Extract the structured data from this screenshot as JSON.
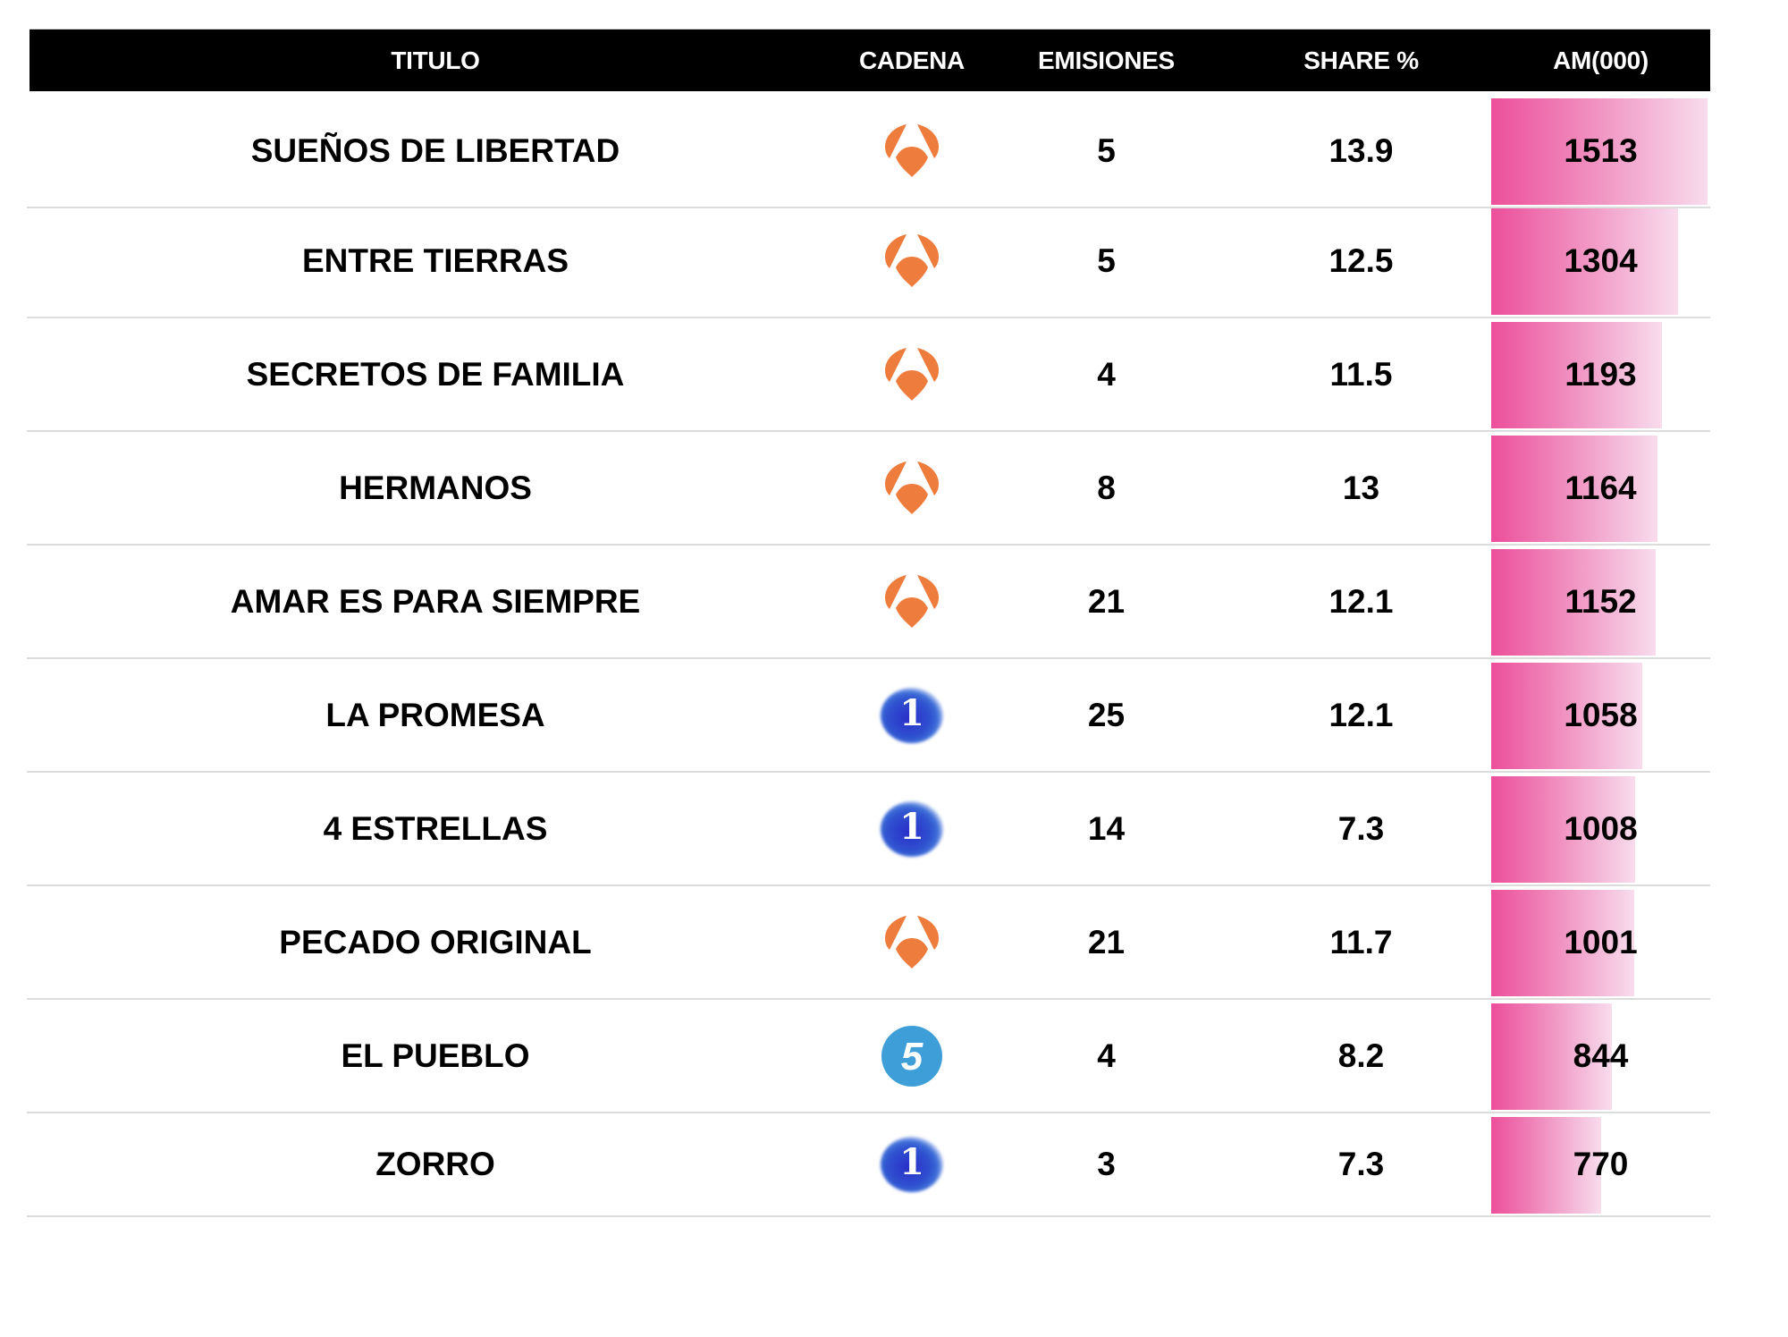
{
  "header": {
    "titulo": "TITULO",
    "cadena": "CADENA",
    "emisiones": "EMISIONES",
    "share": "SHARE %",
    "am": "AM(000)"
  },
  "colors": {
    "header_bg": "#000000",
    "header_text": "#ffffff",
    "bar_gradient_start": "#ec4f9b",
    "bar_gradient_end": "#f8dcec",
    "antena3": "#ee7d3d",
    "la1": "#2f3fc8",
    "telecinco": "#3d9ed8",
    "divider": "#dcdcdc"
  },
  "rows": [
    {
      "titulo": "SUEÑOS DE LIBERTAD",
      "cadena": "antena3",
      "cadena_icon": "antena3-logo-icon",
      "emisiones": "5",
      "share": "13.9",
      "am": "1513"
    },
    {
      "titulo": "ENTRE TIERRAS",
      "cadena": "antena3",
      "cadena_icon": "antena3-logo-icon",
      "emisiones": "5",
      "share": "12.5",
      "am": "1304"
    },
    {
      "titulo": "SECRETOS DE FAMILIA",
      "cadena": "antena3",
      "cadena_icon": "antena3-logo-icon",
      "emisiones": "4",
      "share": "11.5",
      "am": "1193"
    },
    {
      "titulo": "HERMANOS",
      "cadena": "antena3",
      "cadena_icon": "antena3-logo-icon",
      "emisiones": "8",
      "share": "13",
      "am": "1164"
    },
    {
      "titulo": "AMAR ES PARA SIEMPRE",
      "cadena": "antena3",
      "cadena_icon": "antena3-logo-icon",
      "emisiones": "21",
      "share": "12.1",
      "am": "1152"
    },
    {
      "titulo": "LA PROMESA",
      "cadena": "la1",
      "cadena_icon": "la1-logo-icon",
      "cadena_glyph": "1",
      "emisiones": "25",
      "share": "12.1",
      "am": "1058"
    },
    {
      "titulo": "4 ESTRELLAS",
      "cadena": "la1",
      "cadena_icon": "la1-logo-icon",
      "cadena_glyph": "1",
      "emisiones": "14",
      "share": "7.3",
      "am": "1008"
    },
    {
      "titulo": "PECADO ORIGINAL",
      "cadena": "antena3",
      "cadena_icon": "antena3-logo-icon",
      "emisiones": "21",
      "share": "11.7",
      "am": "1001"
    },
    {
      "titulo": "EL PUEBLO",
      "cadena": "telecinco",
      "cadena_icon": "telecinco-logo-icon",
      "cadena_glyph": "5",
      "emisiones": "4",
      "share": "8.2",
      "am": "844"
    },
    {
      "titulo": "ZORRO",
      "cadena": "la1",
      "cadena_icon": "la1-logo-icon",
      "cadena_glyph": "1",
      "emisiones": "3",
      "share": "7.3",
      "am": "770"
    }
  ],
  "chart_data": {
    "type": "table",
    "title": "",
    "columns": [
      "TITULO",
      "CADENA",
      "EMISIONES",
      "SHARE %",
      "AM(000)"
    ],
    "rows": [
      [
        "SUEÑOS DE LIBERTAD",
        "Antena 3",
        5,
        13.9,
        1513
      ],
      [
        "ENTRE TIERRAS",
        "Antena 3",
        5,
        12.5,
        1304
      ],
      [
        "SECRETOS DE FAMILIA",
        "Antena 3",
        4,
        11.5,
        1193
      ],
      [
        "HERMANOS",
        "Antena 3",
        8,
        13,
        1164
      ],
      [
        "AMAR ES PARA SIEMPRE",
        "Antena 3",
        21,
        12.1,
        1152
      ],
      [
        "LA PROMESA",
        "La 1",
        25,
        12.1,
        1058
      ],
      [
        "4 ESTRELLAS",
        "La 1",
        14,
        7.3,
        1008
      ],
      [
        "PECADO ORIGINAL",
        "Antena 3",
        21,
        11.7,
        1001
      ],
      [
        "EL PUEBLO",
        "Telecinco",
        4,
        8.2,
        844
      ],
      [
        "ZORRO",
        "La 1",
        3,
        7.3,
        770
      ]
    ],
    "bar_column": "AM(000)",
    "bar_values": [
      1513,
      1304,
      1193,
      1164,
      1152,
      1058,
      1008,
      1001,
      844,
      770
    ],
    "bar_max": 1513,
    "legend": "none",
    "grid": false
  }
}
